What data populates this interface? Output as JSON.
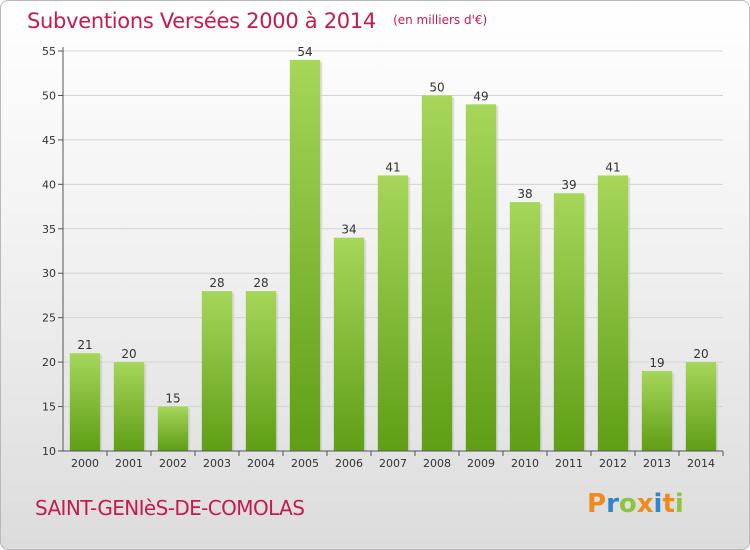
{
  "header": {
    "title": "Subventions Versées 2000 à 2014",
    "subtitle": "(en milliers d'€)"
  },
  "footer": {
    "commune": "SAINT-GENIèS-DE-COMOLAS",
    "logo_text": "Proxiti",
    "logo_colors": [
      "#f08a1c",
      "#2f86c9",
      "#8cc63e",
      "#f08a1c",
      "#2f86c9",
      "#f08a1c",
      "#8cc63e"
    ]
  },
  "chart_data": {
    "type": "bar",
    "title": "Subventions Versées 2000 à 2014",
    "subtitle": "(en milliers d'€)",
    "xlabel": "",
    "ylabel": "",
    "categories": [
      "2000",
      "2001",
      "2002",
      "2003",
      "2004",
      "2005",
      "2006",
      "2007",
      "2008",
      "2009",
      "2010",
      "2011",
      "2012",
      "2013",
      "2014"
    ],
    "values": [
      21,
      20,
      15,
      28,
      28,
      54,
      34,
      41,
      50,
      49,
      38,
      39,
      41,
      19,
      20
    ],
    "ylim": [
      10,
      55
    ],
    "yticks": [
      10,
      15,
      20,
      25,
      30,
      35,
      40,
      45,
      50,
      55
    ],
    "grid": true,
    "bar_color_top": "#a6d65a",
    "bar_color_bottom": "#5f9e16"
  }
}
